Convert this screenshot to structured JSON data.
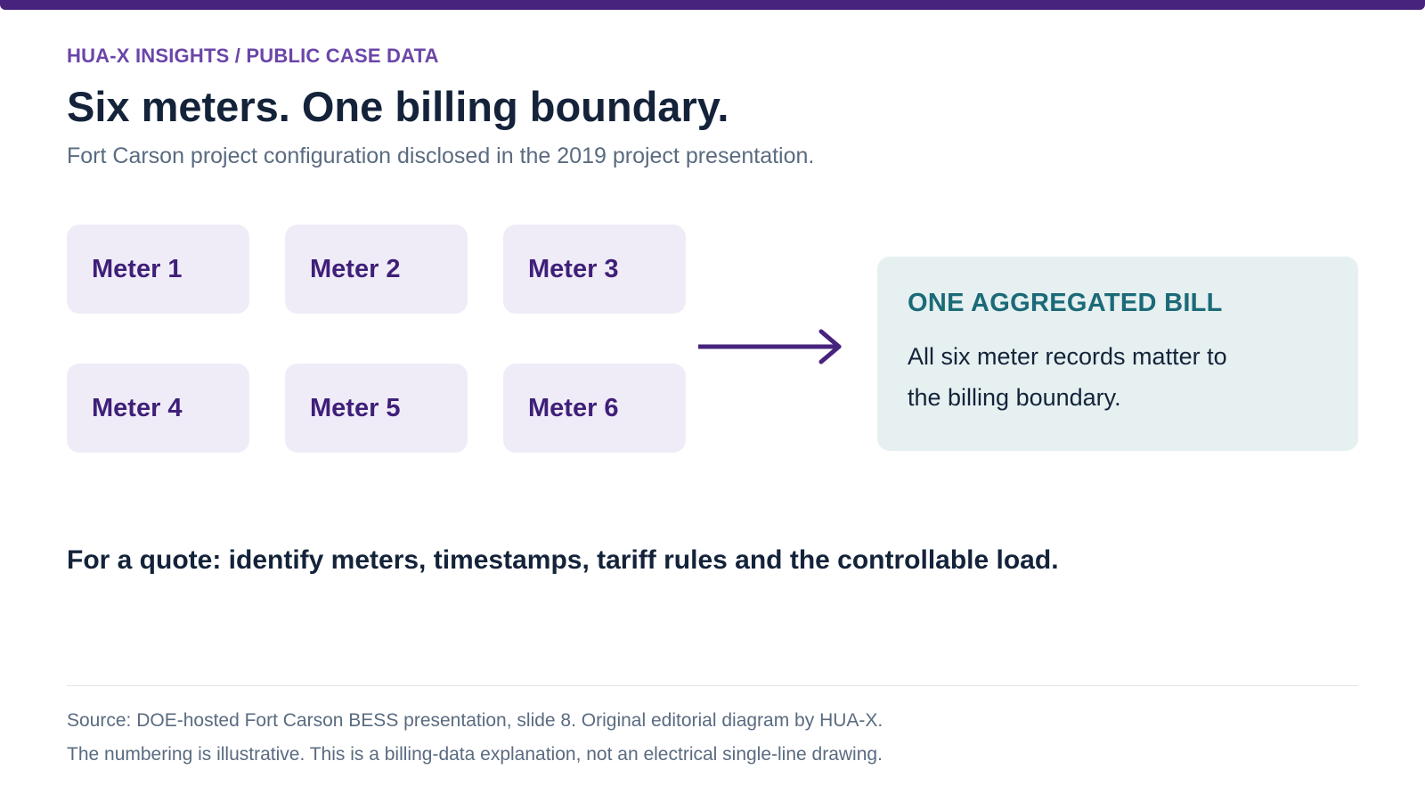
{
  "header": {
    "eyebrow": "HUA-X INSIGHTS / PUBLIC CASE DATA",
    "title": "Six meters. One billing boundary.",
    "subtitle": "Fort Carson project configuration disclosed in the 2019 project presentation."
  },
  "meters": [
    "Meter 1",
    "Meter 2",
    "Meter 3",
    "Meter 4",
    "Meter 5",
    "Meter 6"
  ],
  "bill": {
    "title": "ONE AGGREGATED BILL",
    "text": "All six meter records matter to the billing boundary."
  },
  "quote": "For a quote: identify meters, timestamps, tariff rules and the controllable load.",
  "footer": {
    "source_line1": "Source: DOE-hosted Fort Carson BESS presentation, slide 8. Original editorial diagram by HUA-X.",
    "source_line2": "The numbering is illustrative. This is a billing-data explanation, not an electrical single-line drawing."
  },
  "colors": {
    "accent": "#47237e",
    "meter_fill": "#efecf8",
    "bill_fill": "#e6f0f0",
    "bill_title": "#1b6a78",
    "text_dark": "#14233a"
  },
  "icons": {
    "arrow": "arrow-right-icon"
  }
}
